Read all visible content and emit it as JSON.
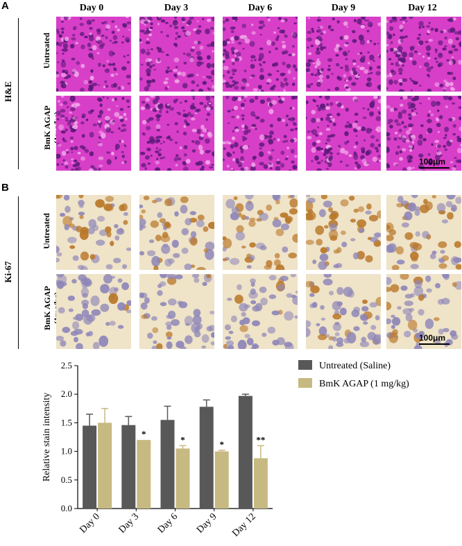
{
  "panels": {
    "a": {
      "letter": "A",
      "section_label": "H&E"
    },
    "b": {
      "letter": "B",
      "section_label": "Ki-67"
    }
  },
  "columns": [
    "Day 0",
    "Day 3",
    "Day 6",
    "Day 9",
    "Day 12"
  ],
  "rows": {
    "untreated": "Untreated",
    "treated_line1": "BmK AGAP",
    "treated_line2": "(1mg/kg)"
  },
  "scale_bar": "100μm",
  "colors": {
    "he_base": "#d83fc8",
    "he_dark": "#5a1a78",
    "ki_base": "#efe3c8",
    "ki_nucleus": "#8e86b8",
    "ki_brown": "#b9782a",
    "untreated_bar": "#585858",
    "treated_bar": "#c7b982"
  },
  "chart_data": {
    "type": "bar",
    "categories": [
      "Day 0",
      "Day 3",
      "Day 6",
      "Day 9",
      "Day 12"
    ],
    "series": [
      {
        "name": "Untreated (Saline)",
        "values": [
          1.45,
          1.46,
          1.55,
          1.78,
          1.97
        ],
        "errors": [
          0.2,
          0.15,
          0.24,
          0.12,
          0.03
        ],
        "color": "#585858"
      },
      {
        "name": "BmK AGAP (1 mg/kg)",
        "values": [
          1.5,
          1.2,
          1.05,
          1.0,
          0.88
        ],
        "errors": [
          0.25,
          0.0,
          0.05,
          0.02,
          0.22
        ],
        "color": "#c7b982",
        "significance": [
          "",
          "*",
          "*",
          "*",
          "**"
        ]
      }
    ],
    "ylabel": "Relative stain intensity",
    "xlabel": "",
    "ylim": [
      0,
      2.5
    ],
    "yticks": [
      "0.0",
      "0.5",
      "1.0",
      "1.5",
      "2.0",
      "2.5"
    ],
    "legend_position": "top-right"
  }
}
